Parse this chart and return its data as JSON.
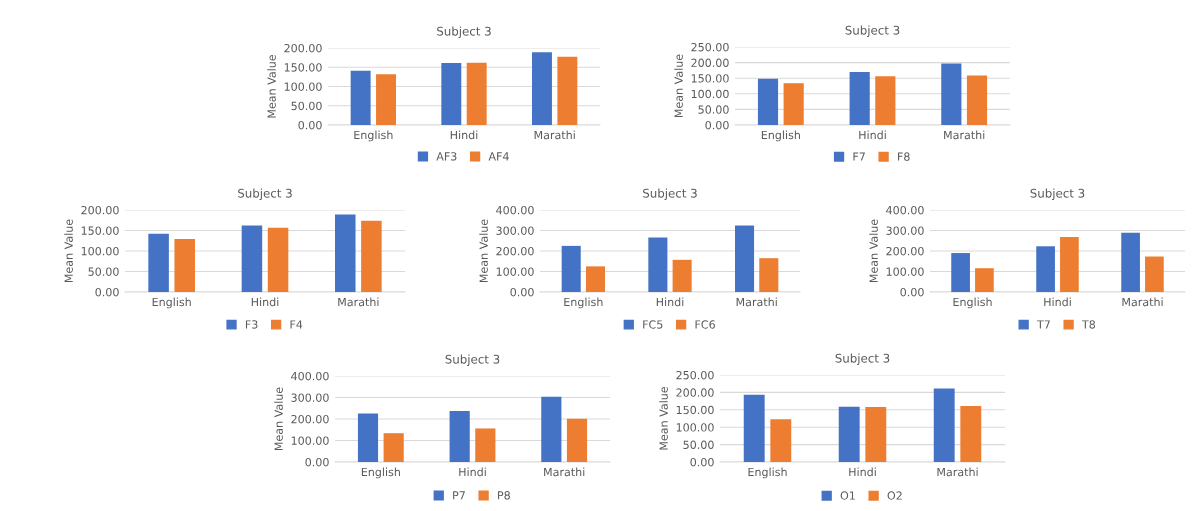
{
  "chart_data": [
    {
      "type": "bar",
      "title": "Subject 3",
      "ylabel": "Mean Value",
      "categories": [
        "English",
        "Hindi",
        "Marathi"
      ],
      "ylim": [
        0,
        200
      ],
      "yticks": [
        {
          "value": 0,
          "label": "0.00"
        },
        {
          "value": 50,
          "label": "50.00"
        },
        {
          "value": 100,
          "label": "100.00"
        },
        {
          "value": 150,
          "label": "150.00"
        },
        {
          "value": 200,
          "label": "200.00"
        }
      ],
      "grid": "y",
      "legend": "bottom",
      "series": [
        {
          "name": "AF3",
          "color": "#4472c4",
          "values": [
            141,
            161,
            189
          ]
        },
        {
          "name": "AF4",
          "color": "#ed7d31",
          "values": [
            132,
            162,
            177
          ]
        }
      ]
    },
    {
      "type": "bar",
      "title": "Subject 3",
      "ylabel": "Mean Value",
      "categories": [
        "English",
        "Hindi",
        "Marathi"
      ],
      "ylim": [
        0,
        250
      ],
      "yticks": [
        {
          "value": 0,
          "label": "0.00"
        },
        {
          "value": 50,
          "label": "50.00"
        },
        {
          "value": 100,
          "label": "100.00"
        },
        {
          "value": 150,
          "label": "150.00"
        },
        {
          "value": 200,
          "label": "200.00"
        },
        {
          "value": 250,
          "label": "250.00"
        }
      ],
      "grid": "y",
      "legend": "bottom",
      "series": [
        {
          "name": "F7",
          "color": "#4472c4",
          "values": [
            148,
            170,
            197
          ]
        },
        {
          "name": "F8",
          "color": "#ed7d31",
          "values": [
            134,
            156,
            159
          ]
        }
      ]
    },
    {
      "type": "bar",
      "title": "Subject 3",
      "ylabel": "Mean Value",
      "categories": [
        "English",
        "Hindi",
        "Marathi"
      ],
      "ylim": [
        0,
        200
      ],
      "yticks": [
        {
          "value": 0,
          "label": "0.00"
        },
        {
          "value": 50,
          "label": "50.00"
        },
        {
          "value": 100,
          "label": "100.00"
        },
        {
          "value": 150,
          "label": "150.00"
        },
        {
          "value": 200,
          "label": "200.00"
        }
      ],
      "grid": "y",
      "legend": "bottom",
      "series": [
        {
          "name": "F3",
          "color": "#4472c4",
          "values": [
            142,
            162,
            189
          ]
        },
        {
          "name": "F4",
          "color": "#ed7d31",
          "values": [
            129,
            157,
            174
          ]
        }
      ]
    },
    {
      "type": "bar",
      "title": "Subject 3",
      "ylabel": "Mean Value",
      "categories": [
        "English",
        "Hindi",
        "Marathi"
      ],
      "ylim": [
        0,
        400
      ],
      "yticks": [
        {
          "value": 0,
          "label": "0.00"
        },
        {
          "value": 100,
          "label": "100.00"
        },
        {
          "value": 200,
          "label": "200.00"
        },
        {
          "value": 300,
          "label": "300.00"
        },
        {
          "value": 400,
          "label": "400.00"
        }
      ],
      "grid": "y",
      "legend": "bottom",
      "series": [
        {
          "name": "FC5",
          "color": "#4472c4",
          "values": [
            225,
            266,
            324
          ]
        },
        {
          "name": "FC6",
          "color": "#ed7d31",
          "values": [
            125,
            157,
            165
          ]
        }
      ]
    },
    {
      "type": "bar",
      "title": "Subject 3",
      "ylabel": "Mean Value",
      "categories": [
        "English",
        "Hindi",
        "Marathi"
      ],
      "ylim": [
        0,
        400
      ],
      "yticks": [
        {
          "value": 0,
          "label": "0.00"
        },
        {
          "value": 100,
          "label": "100.00"
        },
        {
          "value": 200,
          "label": "200.00"
        },
        {
          "value": 300,
          "label": "300.00"
        },
        {
          "value": 400,
          "label": "400.00"
        }
      ],
      "grid": "y",
      "legend": "bottom",
      "series": [
        {
          "name": "T7",
          "color": "#4472c4",
          "values": [
            190,
            223,
            289
          ]
        },
        {
          "name": "T8",
          "color": "#ed7d31",
          "values": [
            116,
            268,
            173
          ]
        }
      ]
    },
    {
      "type": "bar",
      "title": "Subject 3",
      "ylabel": "Mean Value",
      "categories": [
        "English",
        "Hindi",
        "Marathi"
      ],
      "ylim": [
        0,
        400
      ],
      "yticks": [
        {
          "value": 0,
          "label": "0.00"
        },
        {
          "value": 100,
          "label": "100.00"
        },
        {
          "value": 200,
          "label": "200.00"
        },
        {
          "value": 300,
          "label": "300.00"
        },
        {
          "value": 400,
          "label": "400.00"
        }
      ],
      "grid": "y",
      "legend": "bottom",
      "series": [
        {
          "name": "P7",
          "color": "#4472c4",
          "values": [
            226,
            237,
            304
          ]
        },
        {
          "name": "P8",
          "color": "#ed7d31",
          "values": [
            134,
            156,
            201
          ]
        }
      ]
    },
    {
      "type": "bar",
      "title": "Subject 3",
      "ylabel": "Mean Value",
      "categories": [
        "English",
        "Hindi",
        "Marathi"
      ],
      "ylim": [
        0,
        250
      ],
      "yticks": [
        {
          "value": 0,
          "label": "0.00"
        },
        {
          "value": 50,
          "label": "50.00"
        },
        {
          "value": 100,
          "label": "100.00"
        },
        {
          "value": 150,
          "label": "150.00"
        },
        {
          "value": 200,
          "label": "200.00"
        },
        {
          "value": 250,
          "label": "250.00"
        }
      ],
      "grid": "y",
      "legend": "bottom",
      "series": [
        {
          "name": "O1",
          "color": "#4472c4",
          "values": [
            193,
            159,
            211
          ]
        },
        {
          "name": "O2",
          "color": "#ed7d31",
          "values": [
            123,
            158,
            161
          ]
        }
      ]
    }
  ]
}
